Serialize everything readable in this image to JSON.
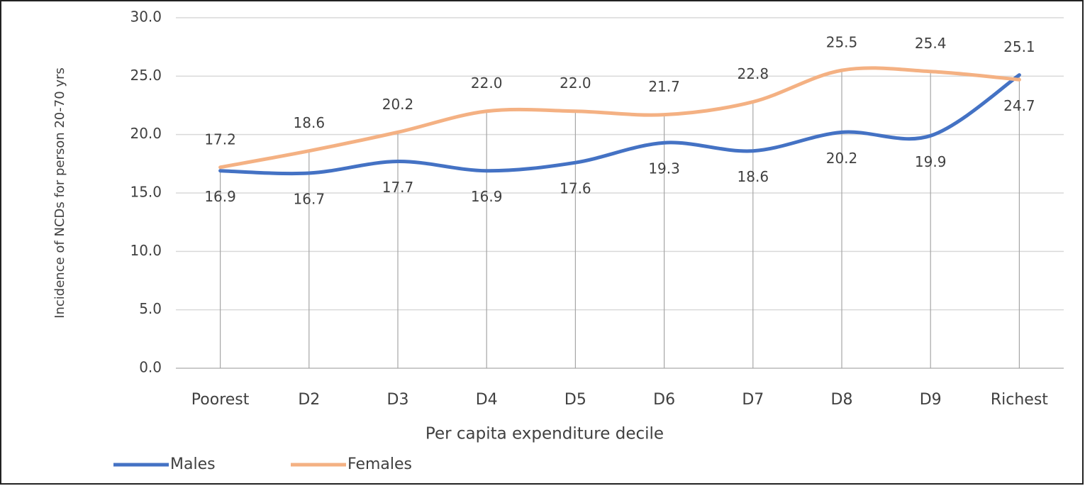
{
  "chart_data": {
    "type": "line",
    "categories": [
      "Poorest",
      "D2",
      "D3",
      "D4",
      "D5",
      "D6",
      "D7",
      "D8",
      "D9",
      "Richest"
    ],
    "series": [
      {
        "name": "Males",
        "color": "#4472c4",
        "values": [
          16.9,
          16.7,
          17.7,
          16.9,
          17.6,
          19.3,
          18.6,
          20.2,
          19.9,
          25.1
        ],
        "value_labels": [
          "16.9",
          "16.7",
          "17.7",
          "16.9",
          "17.6",
          "19.3",
          "18.6",
          "20.2",
          "19.9",
          "25.1"
        ]
      },
      {
        "name": "Females",
        "color": "#f4b183",
        "values": [
          17.2,
          18.6,
          20.2,
          22.0,
          22.0,
          21.7,
          22.8,
          25.5,
          25.4,
          24.7
        ],
        "value_labels": [
          "17.2",
          "18.6",
          "20.2",
          "22.0",
          "22.0",
          "21.7",
          "22.8",
          "25.5",
          "25.4",
          "24.7"
        ]
      }
    ],
    "ylim": [
      0,
      30
    ],
    "yticks": [
      {
        "value": 0,
        "label": "0.0"
      },
      {
        "value": 5,
        "label": "5.0"
      },
      {
        "value": 10,
        "label": "10.0"
      },
      {
        "value": 15,
        "label": "15.0"
      },
      {
        "value": 20,
        "label": "20.0"
      },
      {
        "value": 25,
        "label": "25.0"
      },
      {
        "value": 30,
        "label": "30.0"
      }
    ],
    "ylabel": "Incidence of NCDs for person 20-70 yrs",
    "xlabel": "Per capita expenditure decile",
    "grid": true,
    "smooth": true,
    "drop_lines": true,
    "legend": "bottom-left"
  }
}
